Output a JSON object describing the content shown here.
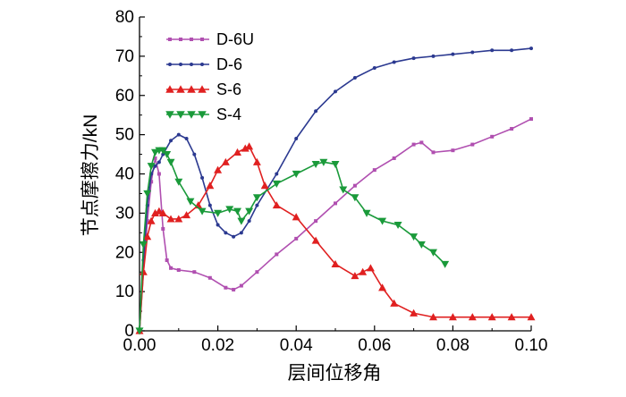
{
  "chart_data": {
    "type": "line",
    "title": "",
    "xlabel": "层间位移角",
    "ylabel": "节点摩擦力/kN",
    "xlim": [
      0.0,
      0.1
    ],
    "ylim": [
      0,
      80
    ],
    "xticks": [
      "0.00",
      "0.02",
      "0.04",
      "0.06",
      "0.08",
      "0.10"
    ],
    "yticks": [
      "0",
      "10",
      "20",
      "30",
      "40",
      "50",
      "60",
      "70",
      "80"
    ],
    "grid": false,
    "legend_position": "top-left",
    "series": [
      {
        "name": "D-6U",
        "color": "#b04fb0",
        "marker": "square",
        "x": [
          0.0,
          0.001,
          0.002,
          0.003,
          0.004,
          0.005,
          0.006,
          0.007,
          0.008,
          0.01,
          0.014,
          0.018,
          0.022,
          0.024,
          0.026,
          0.03,
          0.035,
          0.04,
          0.045,
          0.05,
          0.055,
          0.06,
          0.065,
          0.07,
          0.072,
          0.075,
          0.08,
          0.085,
          0.09,
          0.095,
          0.1
        ],
        "y": [
          0,
          15,
          28,
          38,
          44,
          40,
          26,
          18,
          16,
          15.5,
          15,
          13.5,
          11,
          10.5,
          11.5,
          15,
          19.5,
          23.5,
          28,
          32.5,
          37,
          41,
          44,
          47.5,
          48,
          45.5,
          46,
          47.5,
          49.5,
          51.5,
          54
        ]
      },
      {
        "name": "D-6",
        "color": "#2b3990",
        "marker": "circle",
        "x": [
          0.0,
          0.001,
          0.002,
          0.003,
          0.004,
          0.005,
          0.006,
          0.008,
          0.01,
          0.012,
          0.014,
          0.016,
          0.018,
          0.02,
          0.022,
          0.024,
          0.026,
          0.028,
          0.03,
          0.035,
          0.04,
          0.045,
          0.05,
          0.055,
          0.06,
          0.065,
          0.07,
          0.075,
          0.08,
          0.085,
          0.09,
          0.095,
          0.1
        ],
        "y": [
          0,
          18,
          32,
          40,
          42,
          43,
          45,
          48.5,
          50,
          49,
          45,
          39,
          32,
          27,
          25,
          24,
          25,
          28,
          32,
          40,
          49,
          56,
          61,
          64.5,
          67,
          68.5,
          69.5,
          70,
          70.5,
          71,
          71.5,
          71.5,
          72
        ]
      },
      {
        "name": "S-6",
        "color": "#e02020",
        "marker": "triangle-up",
        "x": [
          0.0,
          0.001,
          0.002,
          0.003,
          0.004,
          0.005,
          0.006,
          0.008,
          0.01,
          0.012,
          0.015,
          0.018,
          0.02,
          0.022,
          0.025,
          0.027,
          0.028,
          0.03,
          0.032,
          0.035,
          0.04,
          0.045,
          0.05,
          0.055,
          0.057,
          0.059,
          0.062,
          0.065,
          0.07,
          0.075,
          0.08,
          0.085,
          0.09,
          0.095,
          0.1
        ],
        "y": [
          0,
          15,
          24,
          28,
          30,
          30.5,
          30,
          28.5,
          28.5,
          29.5,
          32,
          37,
          41,
          43,
          45.5,
          46.5,
          47,
          43,
          37,
          32,
          29,
          23,
          17,
          14,
          15,
          16,
          11,
          7,
          4.5,
          3.5,
          3.5,
          3.5,
          3.5,
          3.5,
          3.5
        ]
      },
      {
        "name": "S-4",
        "color": "#1a9a3a",
        "marker": "triangle-down",
        "x": [
          0.0,
          0.001,
          0.002,
          0.003,
          0.004,
          0.005,
          0.006,
          0.007,
          0.008,
          0.01,
          0.013,
          0.016,
          0.02,
          0.023,
          0.025,
          0.026,
          0.028,
          0.03,
          0.035,
          0.04,
          0.045,
          0.047,
          0.05,
          0.052,
          0.055,
          0.058,
          0.062,
          0.066,
          0.07,
          0.072,
          0.075,
          0.078
        ],
        "y": [
          0,
          22,
          35,
          42,
          45.5,
          46,
          46,
          45,
          43,
          38,
          33,
          30.5,
          30,
          31,
          30.5,
          28,
          30.5,
          34,
          37.5,
          40,
          42.5,
          43,
          42.5,
          36,
          34,
          30,
          28,
          27,
          24,
          22,
          20,
          17
        ]
      }
    ]
  }
}
